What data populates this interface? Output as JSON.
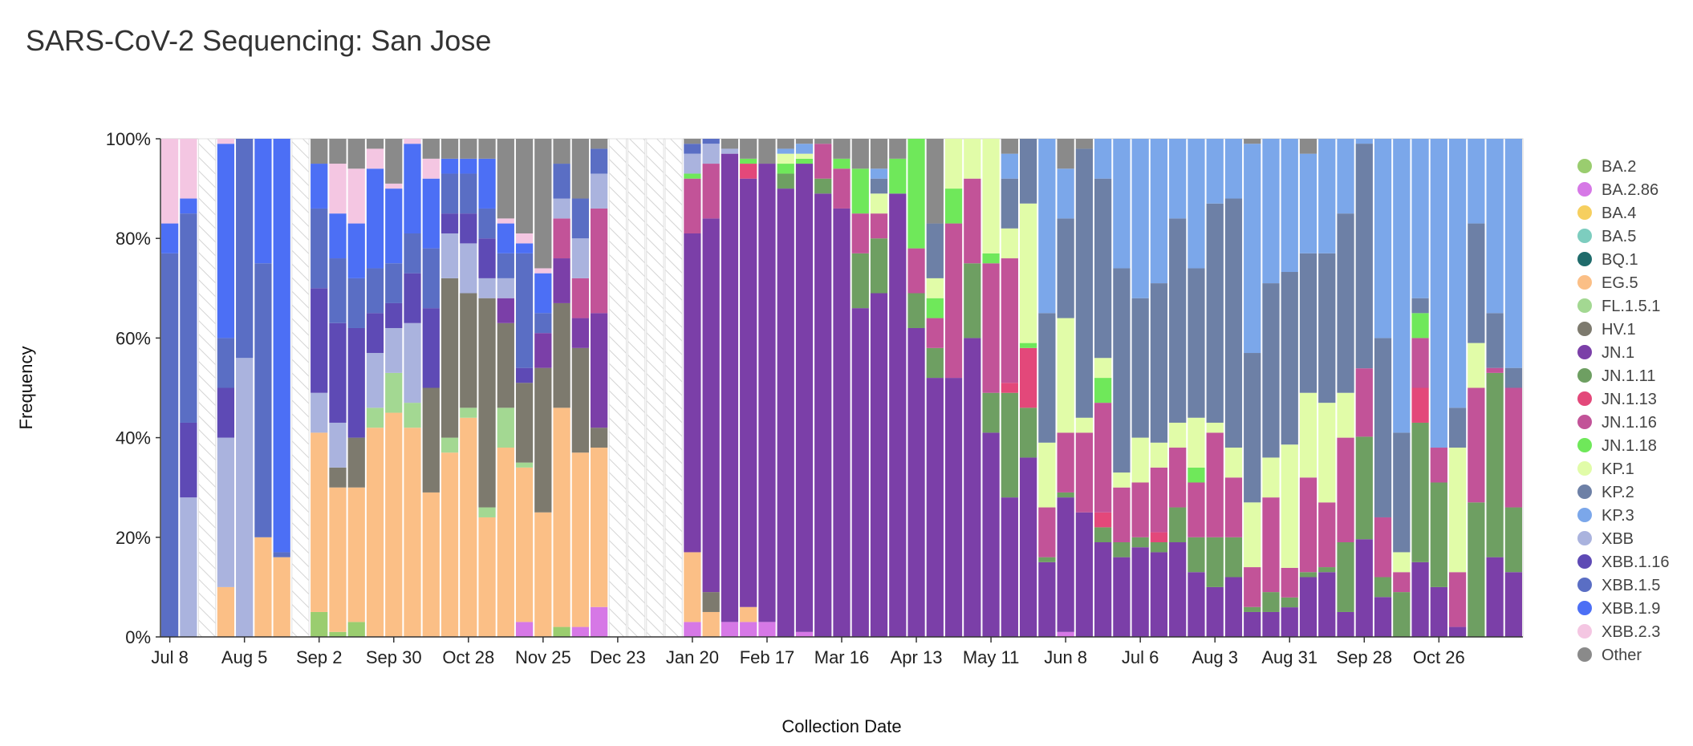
{
  "page_title": "SARS-CoV-2 Sequencing: San Jose",
  "chart_data": {
    "type": "bar",
    "stacked": true,
    "title": "SARS-CoV-2 Sequencing: San Jose",
    "xlabel": "Collection Date",
    "ylabel": "Frequency",
    "ylim": [
      0,
      100
    ],
    "yticks": [
      "0%",
      "20%",
      "40%",
      "60%",
      "80%",
      "100%"
    ],
    "xtick_labels": [
      "Jul 8",
      "Aug 5",
      "Sep 2",
      "Sep 30",
      "Oct 28",
      "Nov 25",
      "Dec 23",
      "Jan 20",
      "Feb 17",
      "Mar 16",
      "Apr 13",
      "May 11",
      "Jun 8",
      "Jul 6",
      "Aug 3",
      "Aug 31",
      "Sep 28",
      "Oct 26"
    ],
    "xtick_week_index": [
      0,
      4,
      8,
      12,
      16,
      20,
      24,
      28,
      32,
      36,
      40,
      44,
      48,
      52,
      56,
      60,
      64,
      68
    ],
    "legend_position": "right",
    "legend": [
      {
        "name": "BA.2",
        "color": "#9acd6f"
      },
      {
        "name": "BA.2.86",
        "color": "#d678e6"
      },
      {
        "name": "BA.4",
        "color": "#f6cf5f"
      },
      {
        "name": "BA.5",
        "color": "#7dcdbf"
      },
      {
        "name": "BQ.1",
        "color": "#1f6b6b"
      },
      {
        "name": "EG.5",
        "color": "#fbbf86"
      },
      {
        "name": "FL.1.5.1",
        "color": "#a3d892"
      },
      {
        "name": "HV.1",
        "color": "#7d7a6e"
      },
      {
        "name": "JN.1",
        "color": "#7b3fa8"
      },
      {
        "name": "JN.1.11",
        "color": "#6e9f62"
      },
      {
        "name": "JN.1.13",
        "color": "#e3487a"
      },
      {
        "name": "JN.1.16",
        "color": "#c25398"
      },
      {
        "name": "JN.1.18",
        "color": "#6fe85a"
      },
      {
        "name": "KP.1",
        "color": "#e1fca8"
      },
      {
        "name": "KP.2",
        "color": "#6d80a6"
      },
      {
        "name": "KP.3",
        "color": "#7ba7ea"
      },
      {
        "name": "XBB",
        "color": "#aab3de"
      },
      {
        "name": "XBB.1.16",
        "color": "#5e4ab5"
      },
      {
        "name": "XBB.1.5",
        "color": "#5a6ec4"
      },
      {
        "name": "XBB.1.9",
        "color": "#4c6ff5"
      },
      {
        "name": "XBB.2.3",
        "color": "#f4c6e2"
      },
      {
        "name": "Other",
        "color": "#8a8a8a"
      }
    ],
    "weeks": [
      {
        "XBB.1.5": 77,
        "XBB.1.9": 6,
        "XBB.2.3": 17
      },
      {
        "XBB": 28,
        "XBB.1.16": 15,
        "XBB.1.5": 42,
        "XBB.1.9": 3,
        "XBB.2.3": 12
      },
      null,
      {
        "EG.5": 10,
        "XBB": 30,
        "XBB.1.16": 10,
        "XBB.1.5": 10,
        "XBB.1.9": 39,
        "XBB.2.3": 1
      },
      {
        "XBB": 56,
        "XBB.1.5": 44
      },
      {
        "EG.5": 20,
        "XBB.1.5": 55,
        "XBB.1.9": 25
      },
      {
        "EG.5": 16,
        "XBB.1.5": 1,
        "XBB.1.9": 83
      },
      null,
      {
        "BA.2": 5,
        "EG.5": 36,
        "XBB": 8,
        "XBB.1.16": 21,
        "XBB.1.5": 16,
        "XBB.1.9": 9,
        "Other": 5
      },
      {
        "BA.2": 1,
        "EG.5": 29,
        "HV.1": 4,
        "XBB": 9,
        "XBB.1.16": 20,
        "XBB.1.5": 13,
        "XBB.1.9": 9,
        "XBB.2.3": 10,
        "Other": 5
      },
      {
        "BA.2": 3,
        "EG.5": 27,
        "HV.1": 10,
        "XBB.1.16": 22,
        "XBB.1.5": 10,
        "XBB.1.9": 11,
        "XBB.2.3": 11,
        "Other": 6
      },
      {
        "EG.5": 42,
        "FL.1.5.1": 4,
        "XBB": 11,
        "XBB.1.16": 8,
        "XBB.1.5": 9,
        "XBB.1.9": 20,
        "XBB.2.3": 4,
        "Other": 2
      },
      {
        "EG.5": 45,
        "FL.1.5.1": 8,
        "XBB": 9,
        "XBB.1.16": 5,
        "XBB.1.5": 8,
        "XBB.1.9": 15,
        "XBB.2.3": 1,
        "Other": 9
      },
      {
        "EG.5": 42,
        "FL.1.5.1": 5,
        "XBB": 16,
        "XBB.1.16": 10,
        "XBB.1.5": 8,
        "XBB.1.9": 18,
        "XBB.2.3": 1
      },
      {
        "EG.5": 29,
        "HV.1": 21,
        "XBB.1.16": 16,
        "XBB.1.5": 12,
        "XBB.1.9": 14,
        "XBB.2.3": 4,
        "Other": 4
      },
      {
        "EG.5": 37,
        "FL.1.5.1": 3,
        "HV.1": 32,
        "XBB": 9,
        "XBB.1.16": 4,
        "XBB.1.5": 8,
        "XBB.1.9": 3,
        "Other": 4
      },
      {
        "EG.5": 44,
        "FL.1.5.1": 2,
        "HV.1": 23,
        "XBB": 10,
        "XBB.1.16": 6,
        "XBB.1.5": 8,
        "XBB.1.9": 3,
        "Other": 4
      },
      {
        "EG.5": 24,
        "FL.1.5.1": 2,
        "HV.1": 42,
        "XBB": 4,
        "XBB.1.16": 8,
        "XBB.1.5": 6,
        "XBB.1.9": 10,
        "Other": 4
      },
      {
        "EG.5": 38,
        "FL.1.5.1": 8,
        "HV.1": 17,
        "JN.1": 5,
        "XBB": 4,
        "XBB.1.5": 5,
        "XBB.1.9": 6,
        "XBB.2.3": 1,
        "Other": 16
      },
      {
        "BA.2.86": 3,
        "EG.5": 31,
        "FL.1.5.1": 1,
        "HV.1": 16,
        "XBB.1.16": 3,
        "XBB.1.5": 23,
        "XBB.1.9": 2,
        "XBB.2.3": 2,
        "Other": 19
      },
      {
        "EG.5": 25,
        "HV.1": 29,
        "JN.1": 7,
        "XBB.1.5": 4,
        "XBB.1.9": 8,
        "XBB.2.3": 1,
        "Other": 26
      },
      {
        "BA.2": 2,
        "EG.5": 44,
        "HV.1": 21,
        "JN.1": 9,
        "JN.1.16": 8,
        "XBB": 4,
        "XBB.1.5": 7,
        "Other": 5
      },
      {
        "BA.2.86": 2,
        "EG.5": 35,
        "HV.1": 21,
        "JN.1": 6,
        "JN.1.16": 8,
        "XBB": 8,
        "XBB.1.5": 8,
        "Other": 12
      },
      {
        "BA.2.86": 6,
        "EG.5": 32,
        "HV.1": 4,
        "JN.1": 23,
        "JN.1.16": 21,
        "XBB": 7,
        "XBB.1.5": 5,
        "Other": 2
      },
      null,
      null,
      null,
      null,
      {
        "BA.2.86": 3,
        "EG.5": 14,
        "JN.1": 64,
        "JN.1.16": 11,
        "JN.1.18": 1,
        "XBB": 4,
        "XBB.1.5": 2,
        "Other": 1
      },
      {
        "EG.5": 5,
        "HV.1": 4,
        "JN.1": 75,
        "JN.1.16": 11,
        "XBB": 4,
        "XBB.1.5": 1
      },
      {
        "BA.2.86": 3,
        "JN.1": 94,
        "XBB": 1,
        "Other": 2
      },
      {
        "BA.2.86": 3,
        "EG.5": 3,
        "JN.1": 86,
        "JN.1.13": 3,
        "JN.1.18": 1,
        "Other": 4
      },
      {
        "BA.2.86": 3,
        "JN.1": 92,
        "Other": 5
      },
      {
        "JN.1": 90,
        "JN.1.11": 3,
        "JN.1.18": 2,
        "KP.1": 2,
        "KP.3": 1,
        "Other": 2
      },
      {
        "BA.2.86": 1,
        "JN.1": 94,
        "JN.1.18": 1,
        "KP.1": 1,
        "KP.3": 2,
        "Other": 1
      },
      {
        "JN.1": 89,
        "JN.1.11": 3,
        "JN.1.16": 7,
        "Other": 1
      },
      {
        "JN.1": 86,
        "JN.1.16": 8,
        "JN.1.18": 2,
        "Other": 4
      },
      {
        "JN.1": 66,
        "JN.1.11": 11,
        "JN.1.16": 8,
        "JN.1.18": 9,
        "Other": 6
      },
      {
        "JN.1": 69,
        "JN.1.11": 11,
        "JN.1.16": 5,
        "KP.1": 4,
        "KP.2": 3,
        "KP.3": 2,
        "Other": 6
      },
      {
        "JN.1": 89,
        "JN.1.18": 7,
        "Other": 4
      },
      {
        "JN.1": 62,
        "JN.1.11": 7,
        "JN.1.16": 9,
        "JN.1.18": 22
      },
      {
        "JN.1": 52,
        "JN.1.11": 6,
        "JN.1.16": 6,
        "JN.1.18": 4,
        "KP.1": 4,
        "KP.2": 11,
        "Other": 17
      },
      {
        "JN.1": 52,
        "JN.1.16": 31,
        "JN.1.18": 7,
        "KP.1": 10
      },
      {
        "JN.1": 60,
        "JN.1.11": 15,
        "JN.1.16": 17,
        "KP.1": 8
      },
      {
        "JN.1": 41,
        "JN.1.11": 8,
        "JN.1.16": 26,
        "JN.1.18": 2,
        "KP.1": 23
      },
      {
        "JN.1": 28,
        "JN.1.11": 21,
        "JN.1.13": 2,
        "JN.1.16": 25,
        "KP.1": 6,
        "KP.2": 10,
        "KP.3": 5,
        "Other": 3
      },
      {
        "JN.1": 36,
        "JN.1.11": 10,
        "JN.1.13": 12,
        "JN.1.18": 1,
        "KP.1": 28,
        "KP.2": 13
      },
      {
        "JN.1": 15,
        "JN.1.11": 1,
        "JN.1.16": 10,
        "KP.1": 13,
        "KP.2": 26,
        "KP.3": 35
      },
      {
        "BA.2.86": 1,
        "JN.1": 27,
        "JN.1.11": 1,
        "JN.1.16": 12,
        "KP.1": 23,
        "KP.2": 20,
        "KP.3": 10,
        "Other": 6
      },
      {
        "JN.1": 25,
        "JN.1.16": 16,
        "KP.1": 3,
        "KP.2": 54,
        "Other": 2
      },
      {
        "JN.1": 19,
        "JN.1.11": 3,
        "JN.1.13": 3,
        "JN.1.16": 22,
        "JN.1.18": 5,
        "KP.1": 4,
        "KP.2": 36,
        "KP.3": 8
      },
      {
        "JN.1": 16,
        "JN.1.11": 3,
        "JN.1.16": 11,
        "KP.1": 3,
        "KP.2": 41,
        "KP.3": 26
      },
      {
        "JN.1": 18,
        "JN.1.11": 2,
        "JN.1.16": 11,
        "KP.1": 9,
        "KP.2": 28,
        "KP.3": 32
      },
      {
        "JN.1": 17,
        "JN.1.11": 2,
        "JN.1.13": 2,
        "JN.1.16": 13,
        "KP.1": 5,
        "KP.2": 32,
        "KP.3": 29
      },
      {
        "JN.1": 19,
        "JN.1.11": 7,
        "JN.1.16": 12,
        "KP.1": 5,
        "KP.2": 41,
        "KP.3": 16
      },
      {
        "JN.1": 13,
        "JN.1.11": 7,
        "JN.1.16": 11,
        "JN.1.18": 3,
        "KP.1": 10,
        "KP.2": 30,
        "KP.3": 26
      },
      {
        "JN.1": 10,
        "JN.1.11": 10,
        "JN.1.16": 21,
        "KP.1": 2,
        "KP.2": 44,
        "KP.3": 13
      },
      {
        "JN.1": 12,
        "JN.1.11": 8,
        "JN.1.16": 12,
        "KP.1": 6,
        "KP.2": 50,
        "KP.3": 12
      },
      {
        "JN.1": 5,
        "JN.1.11": 1,
        "JN.1.16": 8,
        "KP.1": 13,
        "KP.2": 30,
        "KP.3": 42,
        "Other": 1
      },
      {
        "JN.1": 5,
        "JN.1.11": 4,
        "JN.1.16": 19,
        "KP.1": 8,
        "KP.2": 35,
        "KP.3": 29
      },
      {
        "JN.1": 6,
        "JN.1.11": 2,
        "JN.1.16": 6,
        "KP.1": 25,
        "KP.2": 35,
        "KP.3": 27
      },
      {
        "JN.1": 12,
        "JN.1.11": 1,
        "JN.1.16": 19,
        "KP.1": 17,
        "KP.2": 28,
        "KP.3": 20,
        "Other": 3
      },
      {
        "JN.1": 13,
        "JN.1.11": 1,
        "JN.1.16": 13,
        "KP.1": 20,
        "KP.2": 30,
        "KP.3": 23
      },
      {
        "JN.1": 5,
        "JN.1.11": 14,
        "JN.1.16": 21,
        "KP.1": 9,
        "KP.2": 36,
        "KP.3": 15
      },
      {
        "JN.1": 20,
        "JN.1.11": 21,
        "JN.1.16": 14,
        "KP.2": 46,
        "KP.3": 1
      },
      {
        "JN.1": 8,
        "JN.1.11": 4,
        "JN.1.16": 12,
        "KP.2": 36,
        "KP.3": 40
      },
      {
        "JN.1.11": 9,
        "JN.1.16": 4,
        "KP.1": 4,
        "KP.2": 24,
        "KP.3": 59
      },
      {
        "JN.1": 15,
        "JN.1.11": 28,
        "JN.1.13": 7,
        "JN.1.16": 10,
        "JN.1.18": 5,
        "KP.2": 3,
        "KP.3": 32
      },
      {
        "JN.1": 10,
        "JN.1.11": 21,
        "JN.1.16": 7,
        "KP.3": 62
      },
      {
        "JN.1": 2,
        "JN.1.16": 11,
        "KP.1": 25,
        "KP.2": 8,
        "KP.3": 54
      },
      {
        "JN.1.11": 27,
        "JN.1.16": 23,
        "KP.1": 9,
        "KP.2": 24,
        "KP.3": 17
      },
      {
        "JN.1": 16,
        "JN.1.11": 37,
        "JN.1.16": 1,
        "KP.2": 11,
        "KP.3": 35
      },
      {
        "JN.1": 13,
        "JN.1.11": 13,
        "JN.1.16": 24,
        "KP.2": 4,
        "KP.3": 46
      }
    ]
  }
}
